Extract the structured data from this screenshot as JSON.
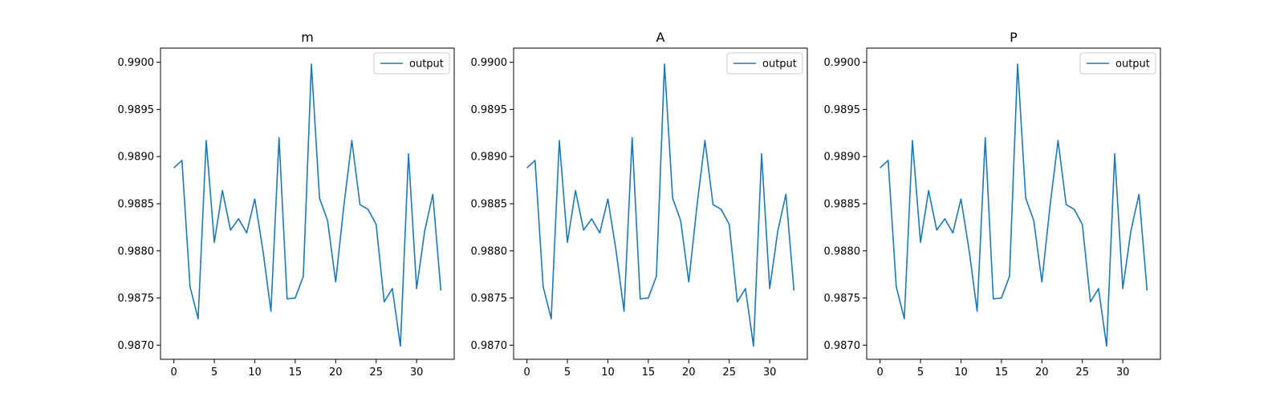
{
  "chart_data": [
    {
      "type": "line",
      "title": "m",
      "xlabel": "",
      "ylabel": "",
      "xlim": [
        -1.65,
        34.65
      ],
      "ylim": [
        0.98685,
        0.99015
      ],
      "xticks": [
        0,
        5,
        10,
        15,
        20,
        25,
        30
      ],
      "xtick_labels": [
        "0",
        "5",
        "10",
        "15",
        "20",
        "25",
        "30"
      ],
      "yticks": [
        0.987,
        0.9875,
        0.988,
        0.9885,
        0.989,
        0.9895,
        0.99
      ],
      "ytick_labels": [
        "0.9870",
        "0.9875",
        "0.9880",
        "0.9885",
        "0.9890",
        "0.9895",
        "0.9900"
      ],
      "grid": false,
      "legend_position": "top-right",
      "series": [
        {
          "name": "output",
          "color": "#1f77b4",
          "x": [
            0,
            1,
            2,
            3,
            4,
            5,
            6,
            7,
            8,
            9,
            10,
            11,
            12,
            13,
            14,
            15,
            16,
            17,
            18,
            19,
            20,
            21,
            22,
            23,
            24,
            25,
            26,
            27,
            28,
            29,
            30,
            31,
            32,
            33
          ],
          "y": [
            0.98888,
            0.98896,
            0.98762,
            0.98728,
            0.98917,
            0.98809,
            0.98864,
            0.98822,
            0.98834,
            0.98819,
            0.98855,
            0.98801,
            0.98736,
            0.9892,
            0.98749,
            0.9875,
            0.98773,
            0.98998,
            0.98856,
            0.98832,
            0.98767,
            0.98847,
            0.98917,
            0.98849,
            0.98844,
            0.98828,
            0.98746,
            0.9876,
            0.98699,
            0.98903,
            0.9876,
            0.98821,
            0.9886,
            0.98758
          ]
        }
      ]
    },
    {
      "type": "line",
      "title": "A",
      "xlabel": "",
      "ylabel": "",
      "xlim": [
        -1.65,
        34.65
      ],
      "ylim": [
        0.98685,
        0.99015
      ],
      "xticks": [
        0,
        5,
        10,
        15,
        20,
        25,
        30
      ],
      "xtick_labels": [
        "0",
        "5",
        "10",
        "15",
        "20",
        "25",
        "30"
      ],
      "yticks": [
        0.987,
        0.9875,
        0.988,
        0.9885,
        0.989,
        0.9895,
        0.99
      ],
      "ytick_labels": [
        "0.9870",
        "0.9875",
        "0.9880",
        "0.9885",
        "0.9890",
        "0.9895",
        "0.9900"
      ],
      "grid": false,
      "legend_position": "top-right",
      "series": [
        {
          "name": "output",
          "color": "#1f77b4",
          "x": [
            0,
            1,
            2,
            3,
            4,
            5,
            6,
            7,
            8,
            9,
            10,
            11,
            12,
            13,
            14,
            15,
            16,
            17,
            18,
            19,
            20,
            21,
            22,
            23,
            24,
            25,
            26,
            27,
            28,
            29,
            30,
            31,
            32,
            33
          ],
          "y": [
            0.98888,
            0.98896,
            0.98762,
            0.98728,
            0.98917,
            0.98809,
            0.98864,
            0.98822,
            0.98834,
            0.98819,
            0.98855,
            0.98801,
            0.98736,
            0.9892,
            0.98749,
            0.9875,
            0.98773,
            0.98998,
            0.98856,
            0.98832,
            0.98767,
            0.98847,
            0.98917,
            0.98849,
            0.98844,
            0.98828,
            0.98746,
            0.9876,
            0.98699,
            0.98903,
            0.9876,
            0.98821,
            0.9886,
            0.98758
          ]
        }
      ]
    },
    {
      "type": "line",
      "title": "P",
      "xlabel": "",
      "ylabel": "",
      "xlim": [
        -1.65,
        34.65
      ],
      "ylim": [
        0.98685,
        0.99015
      ],
      "xticks": [
        0,
        5,
        10,
        15,
        20,
        25,
        30
      ],
      "xtick_labels": [
        "0",
        "5",
        "10",
        "15",
        "20",
        "25",
        "30"
      ],
      "yticks": [
        0.987,
        0.9875,
        0.988,
        0.9885,
        0.989,
        0.9895,
        0.99
      ],
      "ytick_labels": [
        "0.9870",
        "0.9875",
        "0.9880",
        "0.9885",
        "0.9890",
        "0.9895",
        "0.9900"
      ],
      "grid": false,
      "legend_position": "top-right",
      "series": [
        {
          "name": "output",
          "color": "#1f77b4",
          "x": [
            0,
            1,
            2,
            3,
            4,
            5,
            6,
            7,
            8,
            9,
            10,
            11,
            12,
            13,
            14,
            15,
            16,
            17,
            18,
            19,
            20,
            21,
            22,
            23,
            24,
            25,
            26,
            27,
            28,
            29,
            30,
            31,
            32,
            33
          ],
          "y": [
            0.98888,
            0.98896,
            0.98762,
            0.98728,
            0.98917,
            0.98809,
            0.98864,
            0.98822,
            0.98834,
            0.98819,
            0.98855,
            0.98801,
            0.98736,
            0.9892,
            0.98749,
            0.9875,
            0.98773,
            0.98998,
            0.98856,
            0.98832,
            0.98767,
            0.98847,
            0.98917,
            0.98849,
            0.98844,
            0.98828,
            0.98746,
            0.9876,
            0.98699,
            0.98903,
            0.9876,
            0.98821,
            0.9886,
            0.98758
          ]
        }
      ]
    }
  ]
}
